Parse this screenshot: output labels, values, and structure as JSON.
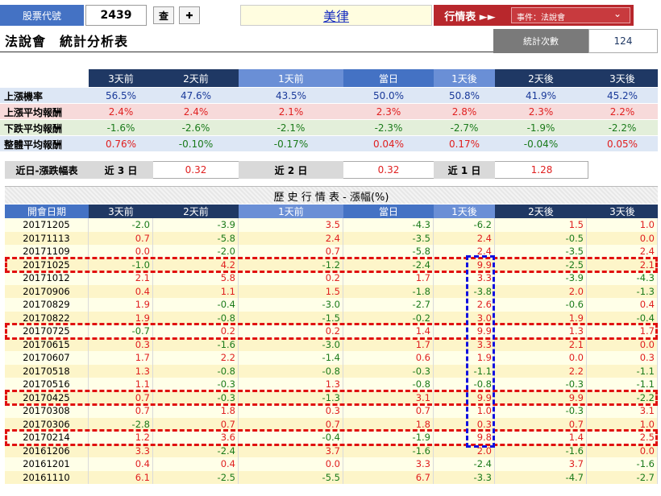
{
  "top": {
    "stock_code_label": "股票代號",
    "stock_code": "2439",
    "query_button": "查",
    "plus_button": "✚",
    "stock_name": "美律",
    "quote_label": "行情表 ►►",
    "event_select": "事件：法說會",
    "event_arrow": "⌄"
  },
  "title": {
    "main": "法說會　統計分析表",
    "count_label": "統計次數",
    "count_value": "124"
  },
  "stats": {
    "columns": [
      "3天前",
      "2天前",
      "1天前",
      "當日",
      "1天後",
      "2天後",
      "3天後"
    ],
    "rows": [
      {
        "label": "上漲機率",
        "values": [
          "56.5%",
          "47.6%",
          "43.5%",
          "50.0%",
          "50.8%",
          "41.9%",
          "45.2%"
        ]
      },
      {
        "label": "上漲平均報酬",
        "values": [
          "2.4%",
          "2.4%",
          "2.1%",
          "2.3%",
          "2.8%",
          "2.3%",
          "2.2%"
        ]
      },
      {
        "label": "下跌平均報酬",
        "values": [
          "-1.6%",
          "-2.6%",
          "-2.1%",
          "-2.3%",
          "-2.7%",
          "-1.9%",
          "-2.2%"
        ]
      },
      {
        "label": "整體平均報酬",
        "values": [
          "0.76%",
          "-0.10%",
          "-0.17%",
          "0.04%",
          "0.17%",
          "-0.04%",
          "0.05%"
        ]
      }
    ]
  },
  "recent": {
    "label": "近日-漲跌幅表",
    "d3_label": "近 3 日",
    "d3_value": "0.32",
    "d2_label": "近 2 日",
    "d2_value": "0.32",
    "d1_label": "近 1 日",
    "d1_value": "1.28"
  },
  "history": {
    "title": "歷 史 行 情 表 - 漲幅(%)",
    "columns": [
      "開會日期",
      "3天前",
      "2天前",
      "1天前",
      "當日",
      "1天後",
      "2天後",
      "3天後"
    ],
    "rows": [
      [
        "20171205",
        "-2.0",
        "-3.9",
        "3.5",
        "-4.3",
        "-6.2",
        "1.5",
        "1.0"
      ],
      [
        "20171113",
        "0.7",
        "-5.8",
        "2.4",
        "-3.5",
        "2.4",
        "-0.5",
        "0.0"
      ],
      [
        "20171109",
        "0.0",
        "-2.0",
        "0.7",
        "-5.8",
        "2.4",
        "-3.5",
        "2.4"
      ],
      [
        "20171025",
        "-1.0",
        "4.2",
        "-1.2",
        "-2.4",
        "9.9",
        "-2.5",
        "2.1"
      ],
      [
        "20171012",
        "2.1",
        "5.8",
        "0.2",
        "1.7",
        "3.3",
        "-3.9",
        "-4.3"
      ],
      [
        "20170906",
        "0.4",
        "1.1",
        "1.5",
        "-1.8",
        "-3.8",
        "2.0",
        "-1.3"
      ],
      [
        "20170829",
        "1.9",
        "-0.4",
        "-3.0",
        "-2.7",
        "2.6",
        "-0.6",
        "0.4"
      ],
      [
        "20170822",
        "1.9",
        "-0.8",
        "-1.5",
        "-0.2",
        "3.0",
        "1.9",
        "-0.4"
      ],
      [
        "20170725",
        "-0.7",
        "0.2",
        "0.2",
        "1.4",
        "9.9",
        "1.3",
        "1.7"
      ],
      [
        "20170615",
        "0.3",
        "-1.6",
        "-3.0",
        "1.7",
        "3.3",
        "2.1",
        "0.0"
      ],
      [
        "20170607",
        "1.7",
        "2.2",
        "-1.4",
        "0.6",
        "1.9",
        "0.0",
        "0.3"
      ],
      [
        "20170518",
        "1.3",
        "-0.8",
        "-0.8",
        "-0.3",
        "-1.1",
        "2.2",
        "-1.1"
      ],
      [
        "20170516",
        "1.1",
        "-0.3",
        "1.3",
        "-0.8",
        "-0.8",
        "-0.3",
        "-1.1"
      ],
      [
        "20170425",
        "0.7",
        "-0.3",
        "-1.3",
        "3.1",
        "9.9",
        "9.9",
        "-2.2"
      ],
      [
        "20170308",
        "0.7",
        "1.8",
        "0.3",
        "0.7",
        "1.0",
        "-0.3",
        "3.1"
      ],
      [
        "20170306",
        "-2.8",
        "0.7",
        "0.7",
        "1.8",
        "0.3",
        "0.7",
        "1.0"
      ],
      [
        "20170214",
        "1.2",
        "3.6",
        "-0.4",
        "-1.9",
        "9.8",
        "1.4",
        "2.5"
      ],
      [
        "20161206",
        "3.3",
        "-2.4",
        "3.7",
        "-1.6",
        "2.0",
        "-1.6",
        "0.0"
      ],
      [
        "20161201",
        "0.4",
        "0.4",
        "0.0",
        "3.3",
        "-2.4",
        "3.7",
        "-1.6"
      ],
      [
        "20161110",
        "6.1",
        "-2.5",
        "-5.5",
        "6.7",
        "-3.3",
        "-4.7",
        "-2.7"
      ]
    ]
  },
  "colors": {
    "up": "#e02020",
    "down": "#1a7a1a",
    "highlight_rows": "#e01010",
    "highlight_column": "#1010e0"
  }
}
